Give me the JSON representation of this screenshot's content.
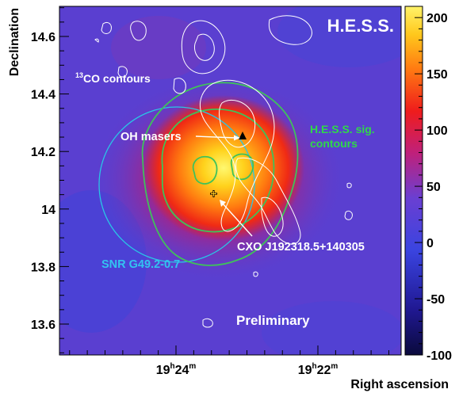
{
  "chart_data": {
    "type": "heatmap",
    "title": "H.E.S.S.",
    "xlabel": "Right ascension",
    "ylabel": "Declination",
    "x_ticks": [
      {
        "h": "19",
        "m": "24"
      },
      {
        "h": "19",
        "m": "22"
      }
    ],
    "y_ticks": [
      "13.6",
      "13.8",
      "14",
      "14.2",
      "14.4",
      "14.6"
    ],
    "colorbar": {
      "ticks": [
        "-100",
        "-50",
        "0",
        "50",
        "100",
        "150",
        "200"
      ],
      "range": [
        -100,
        210
      ]
    },
    "colors": {
      "background": "#5a3fd0",
      "hot_core": "#ffe83a",
      "hess_contour": "#3fc25a",
      "hess_label": "#2fd84a",
      "snr_circle": "#29c6e6",
      "snr_label": "#33c3f0",
      "co_contour": "#ffffff"
    },
    "annotations": {
      "co_contours": {
        "superscript": "13",
        "text": "CO contours"
      },
      "oh_masers": "OH masers",
      "hess_sig": [
        "H.E.S.S. sig.",
        "contours"
      ],
      "cxo": "CXO J192318.5+140305",
      "snr": "SNR G49.2-0.7",
      "preliminary": "Preliminary"
    }
  }
}
